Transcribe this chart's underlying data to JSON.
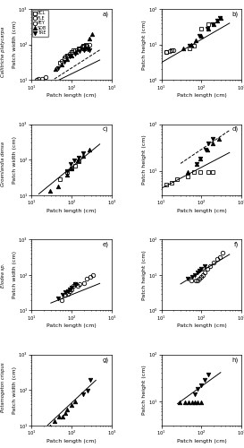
{
  "panel_a": {
    "BCL": {
      "x": [
        50,
        65,
        75,
        100,
        110,
        150,
        190,
        220
      ],
      "y": [
        30,
        40,
        50,
        60,
        70,
        80,
        90,
        100
      ]
    },
    "FLE": {
      "x": [
        13,
        15,
        18,
        22
      ],
      "y": [
        10,
        11,
        11,
        12
      ]
    },
    "PEY": {
      "x": [
        55,
        70,
        80,
        90,
        100,
        120,
        150,
        160,
        180,
        200,
        230,
        270
      ],
      "y": [
        35,
        45,
        50,
        55,
        60,
        70,
        75,
        80,
        85,
        90,
        90,
        100
      ]
    },
    "SDB": {
      "x": [
        40,
        55,
        75,
        100,
        130,
        200,
        280,
        320
      ],
      "y": [
        20,
        28,
        38,
        50,
        60,
        80,
        150,
        200
      ]
    },
    "TRE": {
      "x": [
        45,
        65,
        90,
        120,
        160,
        200,
        250,
        280
      ],
      "y": [
        22,
        32,
        45,
        55,
        65,
        70,
        75,
        70
      ]
    },
    "line_solid_a": 1.2,
    "line_solid_b": 0.55,
    "line_dash_a": 0.8,
    "line_dash_b": 0.72,
    "xlim": [
      10,
      1000
    ],
    "ylim": [
      10,
      1000
    ]
  },
  "panel_b": {
    "BCL": {
      "x": [
        13,
        18,
        50,
        65,
        100,
        150
      ],
      "y": [
        6,
        7,
        8,
        9,
        28,
        38
      ]
    },
    "PEY": {
      "x": [
        13,
        16,
        20
      ],
      "y": [
        6,
        6.5,
        7
      ]
    },
    "SDB": {
      "x": [
        35,
        55,
        70,
        100,
        150,
        200,
        250,
        300
      ],
      "y": [
        8,
        10,
        13,
        18,
        28,
        38,
        48,
        55
      ]
    },
    "TRE": {
      "x": [
        50,
        90,
        140,
        190,
        240,
        290
      ],
      "y": [
        9,
        18,
        28,
        38,
        48,
        55
      ]
    },
    "line_solid_a": 0.7,
    "line_solid_b": 0.65,
    "xlim": [
      10,
      1000
    ],
    "ylim": [
      1,
      100
    ]
  },
  "panel_c": {
    "BCL": {
      "x": [
        50,
        75,
        100,
        120,
        150
      ],
      "y": [
        28,
        45,
        58,
        68,
        88
      ]
    },
    "SDB": {
      "x": [
        28,
        45,
        75,
        100,
        140,
        190,
        280
      ],
      "y": [
        13,
        18,
        38,
        58,
        95,
        128,
        195
      ]
    },
    "TRE": {
      "x": [
        75,
        95,
        115,
        145,
        190
      ],
      "y": [
        48,
        75,
        95,
        115,
        148
      ]
    },
    "line_solid_a": 0.9,
    "line_solid_b": 0.92,
    "xlim": [
      10,
      1000
    ],
    "ylim": [
      10,
      1000
    ]
  },
  "panel_d": {
    "BCL": {
      "x": [
        13,
        18,
        25,
        45,
        65,
        95,
        145,
        190
      ],
      "y": [
        5,
        5.5,
        6.5,
        7.5,
        9.5,
        9.5,
        9.5,
        9.5
      ]
    },
    "SDB": {
      "x": [
        45,
        75,
        95,
        140,
        190,
        280
      ],
      "y": [
        9.5,
        14,
        18,
        28,
        38,
        48
      ]
    },
    "TRE": {
      "x": [
        75,
        95,
        125,
        145,
        190
      ],
      "y": [
        14,
        18,
        28,
        38,
        48
      ]
    },
    "line_solid_a": 1.5,
    "line_solid_b": 0.45,
    "line_dash_a": 2.0,
    "line_dash_b": 0.58,
    "xlim": [
      10,
      1000
    ],
    "ylim": [
      3,
      100
    ]
  },
  "panel_e": {
    "PEY": {
      "x": [
        55,
        70,
        80,
        90,
        100,
        110,
        120,
        140,
        160,
        200,
        240,
        290,
        340
      ],
      "y": [
        20,
        28,
        30,
        35,
        40,
        48,
        55,
        50,
        55,
        60,
        80,
        90,
        100
      ]
    },
    "TRE": {
      "x": [
        45,
        58,
        68,
        80,
        90,
        100,
        120
      ],
      "y": [
        22,
        28,
        32,
        35,
        38,
        45,
        55
      ]
    },
    "line_solid_a": 3.5,
    "line_solid_b": 0.45,
    "xlim": [
      10,
      1000
    ],
    "ylim": [
      10,
      1000
    ]
  },
  "panel_f": {
    "PEY": {
      "x": [
        55,
        70,
        80,
        90,
        100,
        110,
        120,
        140,
        160,
        200,
        240,
        290,
        340
      ],
      "y": [
        7,
        7,
        7,
        8,
        9,
        10,
        12,
        15,
        18,
        22,
        28,
        32,
        42
      ]
    },
    "TRE": {
      "x": [
        45,
        58,
        68,
        80,
        90,
        100,
        120
      ],
      "y": [
        8,
        9,
        10,
        12,
        13,
        15,
        18
      ]
    },
    "line_solid_a": 0.55,
    "line_solid_b": 0.68,
    "xlim": [
      10,
      1000
    ],
    "ylim": [
      1,
      100
    ]
  },
  "panel_g": {
    "SDB": {
      "x": [
        28,
        38,
        48,
        58,
        68,
        78,
        98,
        118
      ],
      "y": [
        9.5,
        13,
        18,
        18,
        22,
        28,
        38,
        48
      ]
    },
    "TRE": {
      "x": [
        195,
        245,
        295
      ],
      "y": [
        78,
        98,
        195
      ]
    },
    "line_solid_a": 0.35,
    "line_solid_b": 1.05,
    "xlim": [
      10,
      1000
    ],
    "ylim": [
      10,
      1000
    ]
  },
  "panel_h": {
    "SDB": {
      "x": [
        28,
        38,
        48,
        58,
        68,
        78,
        98
      ],
      "y": [
        9.5,
        9.5,
        9.5,
        9.5,
        9.5,
        9.5,
        9.5
      ]
    },
    "TRE": {
      "x": [
        68,
        78,
        98,
        118,
        148
      ],
      "y": [
        14,
        18,
        22,
        28,
        38
      ]
    },
    "line_solid_a": 1.2,
    "line_solid_b": 0.62,
    "xlim": [
      10,
      1000
    ],
    "ylim": [
      3,
      100
    ]
  },
  "panel_labels": [
    "a)",
    "b)",
    "c)",
    "d)",
    "e)",
    "f)",
    "g)",
    "h)"
  ],
  "row_labels": [
    "Callitriche platycarpa",
    "Groenlandia densa",
    "Elodea sp.",
    "Potamogeton crispus"
  ],
  "xlabel": "Patch length (cm)",
  "ylabel_width": "Patch width (cm)",
  "ylabel_height": "Patch height (cm)"
}
